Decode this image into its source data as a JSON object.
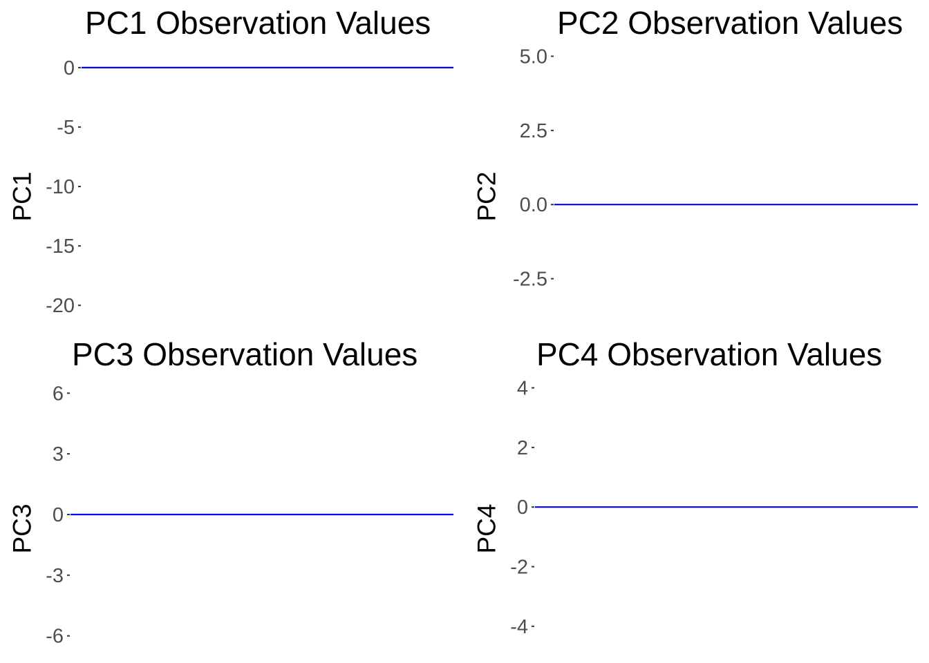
{
  "chart_data": [
    {
      "type": "line",
      "title": "PC1 Observation Values",
      "ylabel": "PC1",
      "xlabel": "",
      "ylim": [
        -21.5,
        2.2
      ],
      "yticks": [
        0,
        -5,
        -10,
        -15,
        -20
      ],
      "ytick_labels": [
        "0",
        "-5",
        "-10",
        "-15",
        "-20"
      ],
      "series": [
        {
          "values": [
            0,
            0
          ]
        }
      ],
      "line_color": "#0000ff",
      "grid": false
    },
    {
      "type": "line",
      "title": "PC2 Observation Values",
      "ylabel": "PC2",
      "xlabel": "",
      "ylim": [
        -4.0,
        5.5
      ],
      "yticks": [
        5.0,
        2.5,
        0.0,
        -2.5
      ],
      "ytick_labels": [
        "5.0",
        "2.5",
        "0.0",
        "-2.5"
      ],
      "series": [
        {
          "values": [
            0,
            0
          ]
        }
      ],
      "line_color": "#0000ff",
      "grid": false
    },
    {
      "type": "line",
      "title": "PC3 Observation Values",
      "ylabel": "PC3",
      "xlabel": "",
      "ylim": [
        -7.0,
        7.0
      ],
      "yticks": [
        6,
        3,
        0,
        -3,
        -6
      ],
      "ytick_labels": [
        "6",
        "3",
        "0",
        "-3",
        "-6"
      ],
      "series": [
        {
          "values": [
            0,
            0
          ]
        }
      ],
      "line_color": "#0000ff",
      "grid": false
    },
    {
      "type": "line",
      "title": "PC4 Observation Values",
      "ylabel": "PC4",
      "xlabel": "",
      "ylim": [
        -5.0,
        4.5
      ],
      "yticks": [
        4,
        2,
        0,
        -2,
        -4
      ],
      "ytick_labels": [
        "4",
        "2",
        "0",
        "-2",
        "-4"
      ],
      "series": [
        {
          "values": [
            0,
            0
          ]
        }
      ],
      "line_color": "#0000ff",
      "grid": false
    }
  ]
}
